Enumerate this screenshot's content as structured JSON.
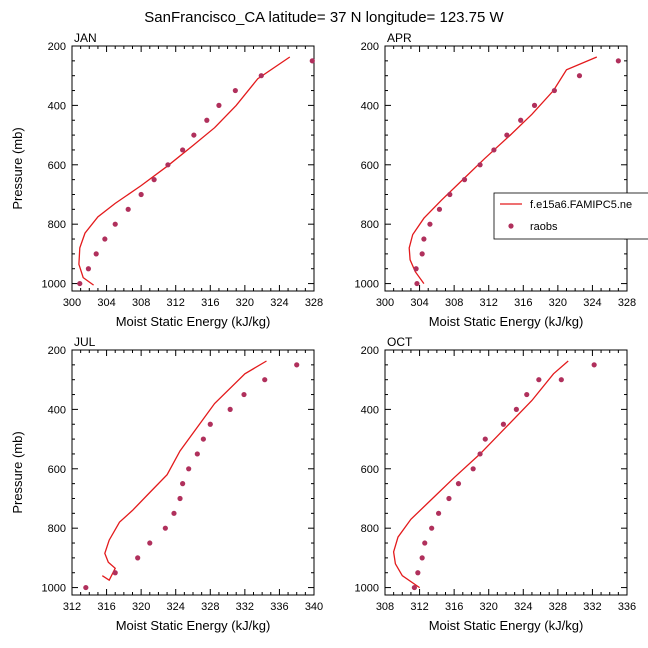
{
  "figure": {
    "title": "SanFrancisco_CA  latitude= 37 N longitude= 123.75 W"
  },
  "legend": {
    "entries": [
      {
        "label": "f.e15a6.FAMIPC5.ne",
        "style": "line",
        "color": "#e31a1c"
      },
      {
        "label": "raobs",
        "style": "marker",
        "color": "#b0305c"
      }
    ]
  },
  "chart_data": [
    {
      "type": "line",
      "panel_label": "JAN",
      "xlabel": "Moist Static Energy (kJ/kg)",
      "ylabel": "Pressure (mb)",
      "xlim": [
        300,
        328
      ],
      "ylim": [
        1025,
        200
      ],
      "x_ticks": [
        300,
        304,
        308,
        312,
        316,
        320,
        324,
        328
      ],
      "x_tick_labels": [
        "300",
        "304",
        "308",
        "312",
        "316",
        "320",
        "324",
        "328"
      ],
      "y_ticks": [
        200,
        400,
        600,
        800,
        1000
      ],
      "y_tick_labels": [
        "200",
        "400",
        "600",
        "800",
        "1000"
      ],
      "series": [
        {
          "name": "f.e15a6.FAMIPC5.ne",
          "style": "line",
          "color": "#e31a1c",
          "x": [
            302.5,
            301.3,
            300.8,
            300.9,
            301.5,
            303.0,
            305.0,
            308.0,
            311.0,
            314.0,
            316.5,
            319.0,
            321.5,
            325.2
          ],
          "y": [
            1005,
            980,
            935,
            880,
            830,
            775,
            730,
            670,
            605,
            535,
            475,
            400,
            310,
            237
          ]
        },
        {
          "name": "raobs",
          "style": "marker",
          "color": "#b0305c",
          "x": [
            300.9,
            301.9,
            302.8,
            303.8,
            305.0,
            306.5,
            308.0,
            309.5,
            311.1,
            312.8,
            314.1,
            315.6,
            317.0,
            318.9,
            321.9,
            327.8
          ],
          "y": [
            1000,
            950,
            900,
            850,
            800,
            750,
            700,
            650,
            600,
            550,
            500,
            450,
            400,
            350,
            300,
            250
          ]
        }
      ]
    },
    {
      "type": "line",
      "panel_label": "APR",
      "xlabel": "Moist Static Energy (kJ/kg)",
      "ylabel": "",
      "xlim": [
        300,
        328
      ],
      "ylim": [
        1025,
        200
      ],
      "x_ticks": [
        300,
        304,
        308,
        312,
        316,
        320,
        324,
        328
      ],
      "x_tick_labels": [
        "300",
        "304",
        "308",
        "312",
        "316",
        "320",
        "324",
        "328"
      ],
      "y_ticks": [
        200,
        400,
        600,
        800,
        1000
      ],
      "y_tick_labels": [
        "200",
        "400",
        "600",
        "800",
        "1000"
      ],
      "series": [
        {
          "name": "f.e15a6.FAMIPC5.ne",
          "style": "line",
          "color": "#e31a1c",
          "x": [
            304.5,
            303.5,
            302.9,
            302.8,
            303.2,
            304.5,
            306.5,
            309.0,
            311.5,
            314.5,
            317.0,
            319.5,
            321.0,
            324.5
          ],
          "y": [
            1000,
            960,
            920,
            880,
            835,
            780,
            720,
            650,
            580,
            500,
            430,
            350,
            280,
            237
          ]
        },
        {
          "name": "raobs",
          "style": "marker",
          "color": "#b0305c",
          "x": [
            303.7,
            303.6,
            304.3,
            304.5,
            305.2,
            306.3,
            307.5,
            309.2,
            311.0,
            312.6,
            314.1,
            315.7,
            317.3,
            319.6,
            322.5,
            327.0
          ],
          "y": [
            1000,
            950,
            900,
            850,
            800,
            750,
            700,
            650,
            600,
            550,
            500,
            450,
            400,
            350,
            300,
            250
          ]
        }
      ]
    },
    {
      "type": "line",
      "panel_label": "JUL",
      "xlabel": "Moist Static Energy (kJ/kg)",
      "ylabel": "Pressure (mb)",
      "xlim": [
        312,
        340
      ],
      "ylim": [
        1025,
        200
      ],
      "x_ticks": [
        312,
        316,
        320,
        324,
        328,
        332,
        336,
        340
      ],
      "x_tick_labels": [
        "312",
        "316",
        "320",
        "324",
        "328",
        "332",
        "336",
        "340"
      ],
      "y_ticks": [
        200,
        400,
        600,
        800,
        1000
      ],
      "y_tick_labels": [
        "200",
        "400",
        "600",
        "800",
        "1000"
      ],
      "series": [
        {
          "name": "f.e15a6.FAMIPC5.ne",
          "style": "line",
          "color": "#e31a1c",
          "x": [
            315.5,
            316.3,
            317.0,
            316.2,
            315.8,
            316.3,
            317.5,
            319.0,
            321.0,
            323.0,
            324.5,
            326.5,
            328.5,
            332.0,
            334.5
          ],
          "y": [
            960,
            975,
            935,
            915,
            885,
            840,
            780,
            740,
            680,
            620,
            540,
            460,
            380,
            280,
            237
          ]
        },
        {
          "name": "raobs",
          "style": "marker",
          "color": "#b0305c",
          "x": [
            313.6,
            317.0,
            319.6,
            321.0,
            322.8,
            323.8,
            324.5,
            324.8,
            325.5,
            326.5,
            327.2,
            328.0,
            330.3,
            331.9,
            334.3,
            338.0
          ],
          "y": [
            1000,
            950,
            900,
            850,
            800,
            750,
            700,
            650,
            600,
            550,
            500,
            450,
            400,
            350,
            300,
            250
          ]
        }
      ]
    },
    {
      "type": "line",
      "panel_label": "OCT",
      "xlabel": "Moist Static Energy (kJ/kg)",
      "ylabel": "",
      "xlim": [
        308,
        336
      ],
      "ylim": [
        1025,
        200
      ],
      "x_ticks": [
        308,
        312,
        316,
        320,
        324,
        328,
        332,
        336
      ],
      "x_tick_labels": [
        "308",
        "312",
        "316",
        "320",
        "324",
        "328",
        "332",
        "336"
      ],
      "y_ticks": [
        200,
        400,
        600,
        800,
        1000
      ],
      "y_tick_labels": [
        "200",
        "400",
        "600",
        "800",
        "1000"
      ],
      "series": [
        {
          "name": "f.e15a6.FAMIPC5.ne",
          "style": "line",
          "color": "#e31a1c",
          "x": [
            312.0,
            310.0,
            309.2,
            309.0,
            309.5,
            311.0,
            313.5,
            316.0,
            319.0,
            322.0,
            325.0,
            327.5,
            329.2
          ],
          "y": [
            1000,
            960,
            920,
            880,
            830,
            770,
            700,
            630,
            550,
            460,
            370,
            280,
            237
          ]
        },
        {
          "name": "raobs",
          "style": "marker",
          "color": "#b0305c",
          "x": [
            311.4,
            311.8,
            312.3,
            312.6,
            313.4,
            314.2,
            315.4,
            316.5,
            318.2,
            319.0,
            319.6,
            321.7,
            323.2,
            324.4,
            325.8,
            328.4,
            332.2
          ],
          "y": [
            1000,
            950,
            900,
            850,
            800,
            750,
            700,
            650,
            600,
            550,
            500,
            450,
            400,
            350,
            300,
            300,
            250
          ]
        }
      ]
    }
  ]
}
